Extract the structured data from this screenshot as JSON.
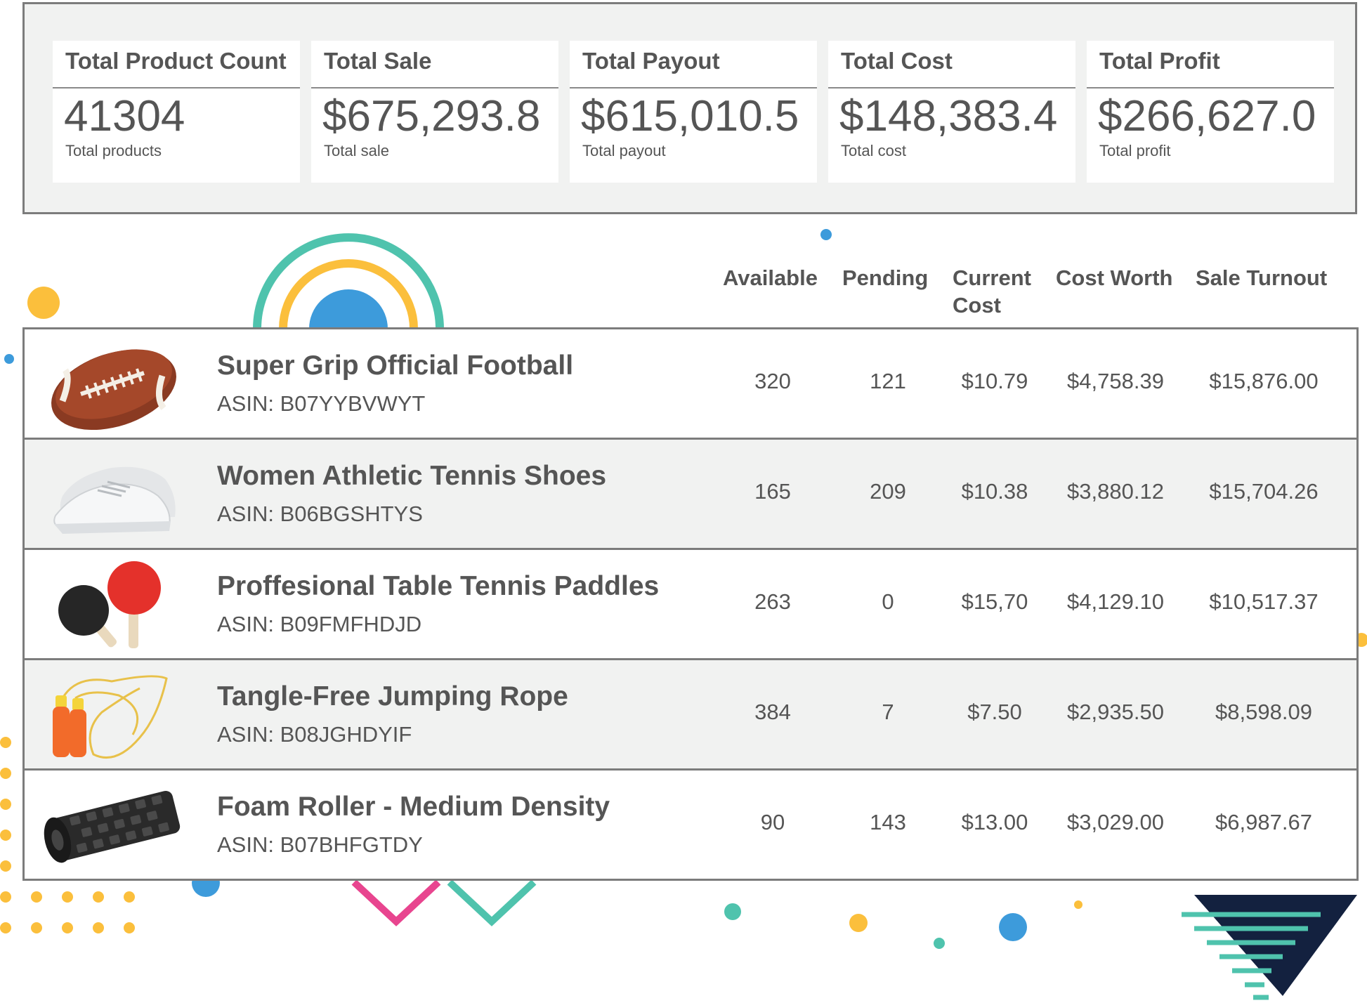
{
  "summary": {
    "cards": [
      {
        "title": "Total Product Count",
        "value": "41304",
        "sub": "Total products"
      },
      {
        "title": "Total Sale",
        "value": "$675,293.8",
        "sub": "Total sale"
      },
      {
        "title": "Total Payout",
        "value": "$615,010.5",
        "sub": "Total payout"
      },
      {
        "title": "Total Cost",
        "value": "$148,383.4",
        "sub": "Total cost"
      },
      {
        "title": "Total Profit",
        "value": "$266,627.0",
        "sub": "Total profit"
      }
    ]
  },
  "table": {
    "headers": {
      "available": "Available",
      "pending": "Pending",
      "current_cost_1": "Current",
      "current_cost_2": "Cost",
      "cost_worth": "Cost Worth",
      "sale_turnout": "Sale Turnout"
    },
    "rows": [
      {
        "name": "Super Grip Official Football",
        "asin": "ASIN: B07YYBVWYT",
        "available": "320",
        "pending": "121",
        "current_cost": "$10.79",
        "cost_worth": "$4,758.39",
        "sale_turnout": "$15,876.00",
        "icon": "football-icon"
      },
      {
        "name": "Women Athletic Tennis Shoes",
        "asin": "ASIN: B06BGSHTYS",
        "available": "165",
        "pending": "209",
        "current_cost": "$10.38",
        "cost_worth": "$3,880.12",
        "sale_turnout": "$15,704.26",
        "icon": "sneaker-icon"
      },
      {
        "name": "Proffesional Table Tennis Paddles",
        "asin": "ASIN: B09FMFHDJD",
        "available": "263",
        "pending": "0",
        "current_cost": "$15,70",
        "cost_worth": "$4,129.10",
        "sale_turnout": "$10,517.37",
        "icon": "paddles-icon"
      },
      {
        "name": "Tangle-Free Jumping Rope",
        "asin": "ASIN: B08JGHDYIF",
        "available": "384",
        "pending": "7",
        "current_cost": "$7.50",
        "cost_worth": "$2,935.50",
        "sale_turnout": "$8,598.09",
        "icon": "jump-rope-icon"
      },
      {
        "name": "Foam Roller - Medium Density",
        "asin": "ASIN: B07BHFGTDY",
        "available": "90",
        "pending": "143",
        "current_cost": "$13.00",
        "cost_worth": "$3,029.00",
        "sale_turnout": "$6,987.67",
        "icon": "foam-roller-icon"
      }
    ]
  },
  "colors": {
    "panel_bg": "#f1f2f1",
    "border": "#7c7c7c",
    "text": "#555555",
    "accent_teal": "#4fc3ad",
    "accent_yellow": "#fbbf3c",
    "accent_blue": "#3d9bdb",
    "accent_pink": "#e8458f",
    "accent_navy": "#13213f"
  }
}
